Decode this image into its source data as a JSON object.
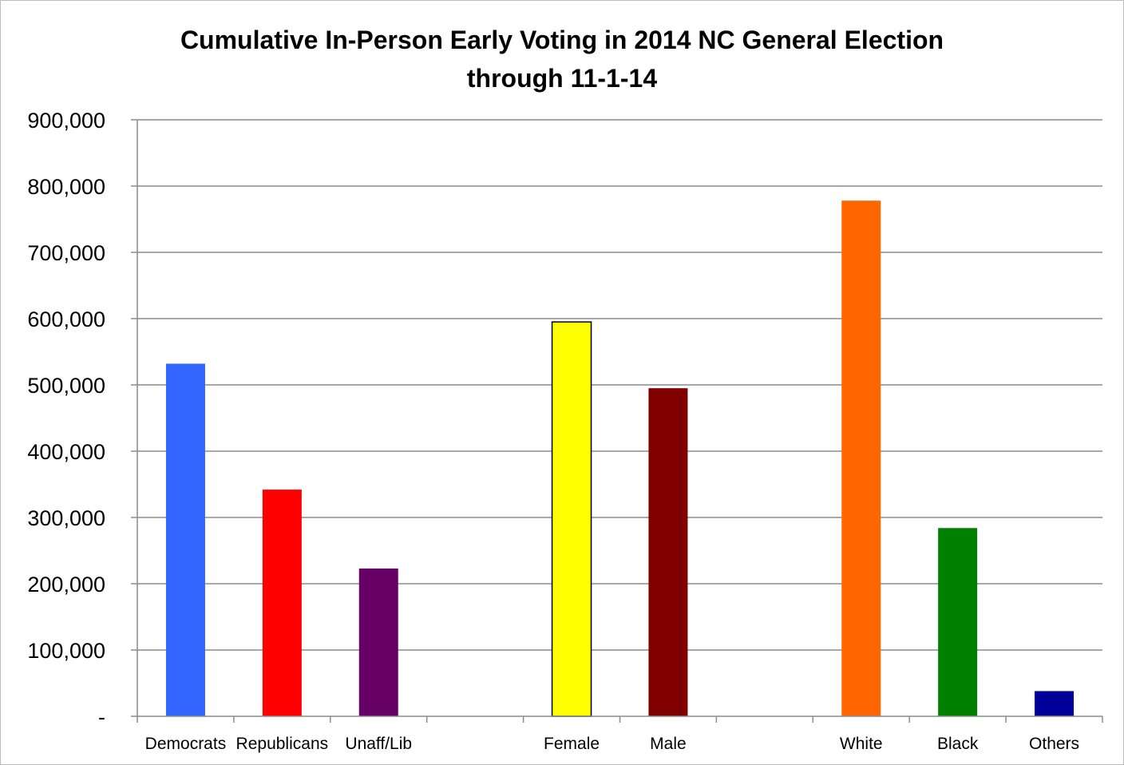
{
  "chart_data": {
    "type": "bar",
    "title_lines": [
      "Cumulative In-Person Early Voting in 2014 NC General Election",
      "through 11-1-14"
    ],
    "xlabel": "",
    "ylabel": "",
    "ylim": [
      0,
      900000
    ],
    "y_ticks": [
      {
        "value": 0,
        "label": "-"
      },
      {
        "value": 100000,
        "label": "100,000"
      },
      {
        "value": 200000,
        "label": "200,000"
      },
      {
        "value": 300000,
        "label": "300,000"
      },
      {
        "value": 400000,
        "label": "400,000"
      },
      {
        "value": 500000,
        "label": "500,000"
      },
      {
        "value": 600000,
        "label": "600,000"
      },
      {
        "value": 700000,
        "label": "700,000"
      },
      {
        "value": 800000,
        "label": "800,000"
      },
      {
        "value": 900000,
        "label": "900,000"
      }
    ],
    "grid": true,
    "legend": "none",
    "categories": [
      "Democrats",
      "Republicans",
      "Unaff/Lib",
      "",
      "Female",
      "Male",
      "",
      "White",
      "Black",
      "Others"
    ],
    "values": [
      532000,
      342000,
      223000,
      null,
      595000,
      495000,
      null,
      778000,
      284000,
      38000
    ],
    "colors": [
      "#3366ff",
      "#ff0000",
      "#660066",
      null,
      "#ffff00",
      "#800000",
      null,
      "#ff6600",
      "#008000",
      "#000099"
    ],
    "outlined": [
      false,
      false,
      false,
      false,
      true,
      false,
      false,
      false,
      false,
      false
    ]
  }
}
